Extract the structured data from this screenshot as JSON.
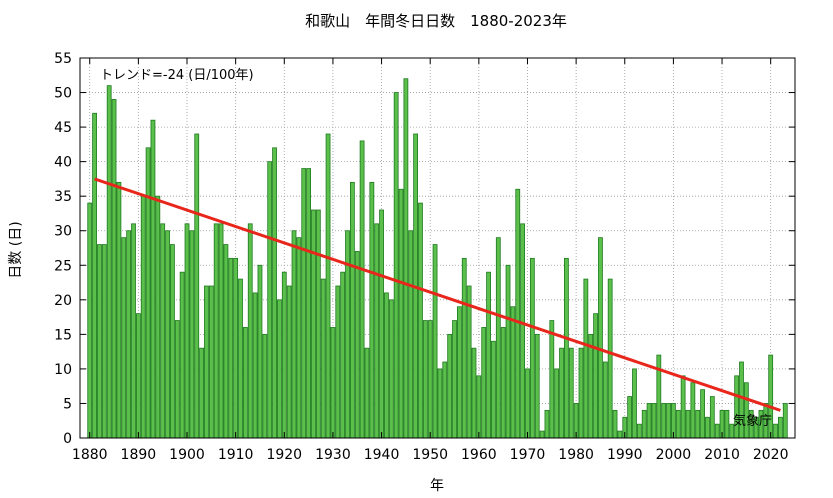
{
  "chart_data": {
    "type": "bar",
    "title": "和歌山　年間冬日日数　1880-2023年",
    "xlabel": "年",
    "ylabel": "日数 (日)",
    "x_start": 1880,
    "x_end": 2023,
    "xlim": [
      1878,
      2025
    ],
    "ylim": [
      0,
      55
    ],
    "xticks": [
      "1880",
      "1890",
      "1900",
      "1910",
      "1920",
      "1930",
      "1940",
      "1950",
      "1960",
      "1970",
      "1980",
      "1990",
      "2000",
      "2010",
      "2020"
    ],
    "yticks": [
      "0",
      "5",
      "10",
      "15",
      "20",
      "25",
      "30",
      "35",
      "40",
      "45",
      "50",
      "55"
    ],
    "grid": true,
    "trend_label": "トレンド=-24 (日/100年)",
    "source_label": "気象庁",
    "bar_color": "#5bbf4b",
    "bar_edge_color": "#1f7a1f",
    "trend_color": "#e8261b",
    "trend_line": {
      "x": [
        1881,
        2022
      ],
      "y": [
        37.5,
        4.0
      ]
    },
    "values": [
      34,
      47,
      28,
      28,
      51,
      49,
      37,
      29,
      30,
      31,
      18,
      35,
      42,
      46,
      35,
      31,
      30,
      28,
      17,
      24,
      31,
      30,
      44,
      13,
      22,
      22,
      31,
      31,
      28,
      26,
      26,
      23,
      16,
      31,
      21,
      25,
      15,
      40,
      42,
      20,
      24,
      22,
      30,
      29,
      39,
      39,
      33,
      33,
      23,
      44,
      16,
      22,
      24,
      30,
      37,
      27,
      43,
      13,
      37,
      31,
      33,
      21,
      20,
      50,
      36,
      52,
      30,
      44,
      34,
      17,
      17,
      28,
      10,
      11,
      15,
      17,
      19,
      26,
      22,
      13,
      9,
      16,
      24,
      14,
      29,
      16,
      25,
      19,
      36,
      31,
      10,
      26,
      15,
      1,
      4,
      17,
      10,
      13,
      26,
      13,
      5,
      13,
      23,
      15,
      18,
      29,
      11,
      23,
      4,
      1,
      3,
      6,
      10,
      2,
      4,
      5,
      5,
      12,
      5,
      5,
      5,
      4,
      9,
      4,
      8,
      4,
      7,
      3,
      6,
      2,
      4,
      4,
      2,
      9,
      11,
      8,
      4,
      3,
      4,
      5,
      12,
      2,
      3,
      5
    ]
  }
}
